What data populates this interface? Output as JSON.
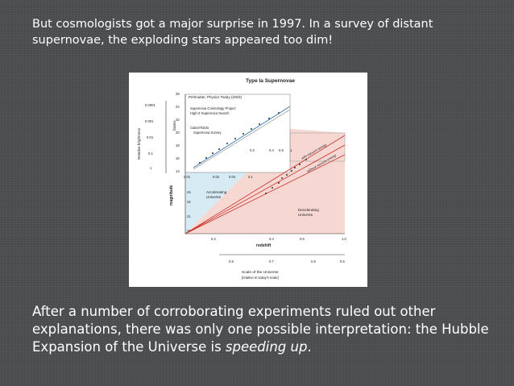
{
  "slide": {
    "intro_text": "But cosmologists got a major surprise in 1997. In a survey of distant supernovae, the exploding stars appeared too dim!",
    "conclusion_prefix": "After a number of corroborating experiments ruled out other explanations, there was only one possible interpretation: the Hubble Expansion of the Universe is ",
    "conclusion_emphasis": "speeding up",
    "conclusion_suffix": "."
  },
  "figure": {
    "title": "Type Ia Supernovae",
    "credit": "Perlmutter, Physics Today (2003)",
    "legend": [
      "Supernova Cosmology Project",
      "High-Z Supernova Search",
      "Calan/Tololo",
      "Supernova Survey"
    ],
    "left_axis_label": "Relative brightness",
    "left_axis_ticks": [
      "0.0001",
      "0.001",
      "0.01",
      "0.1",
      "1"
    ],
    "faint_label": "fainter",
    "y_axis_label": "magnitude",
    "y_ticks": [
      "26",
      "24",
      "22",
      "20",
      "18",
      "16",
      "14"
    ],
    "lower_y_ticks": [
      "24",
      "22",
      "21",
      "20"
    ],
    "x_axis_label": "redshift",
    "x_ticks": [
      "0.2",
      "0.4",
      "0.6",
      "1.0"
    ],
    "inset_x_ticks": [
      "0.01",
      "0.02",
      "0.04",
      "0.1"
    ],
    "inset_top_ticks": [
      "0.2",
      "0.4",
      "0.6",
      "1"
    ],
    "scale_ticks": [
      "0.9",
      "0.7",
      "0.6",
      "0.5"
    ],
    "scale_label": "Scale of the Universe",
    "scale_sublabel": "[relative to today's scale]",
    "accelerating_label": [
      "Accelerating",
      "Universe"
    ],
    "decelerating_label": [
      "Decelerating",
      "Universe"
    ],
    "curve_labels": [
      "with vacuum energy",
      "without vacuum energy"
    ],
    "colors": {
      "accelerating_region": "#d6ebf3",
      "decelerating_region": "#f6d7d2",
      "accelerating_text": "#2a72b5",
      "decelerating_text": "#c8312a"
    }
  }
}
